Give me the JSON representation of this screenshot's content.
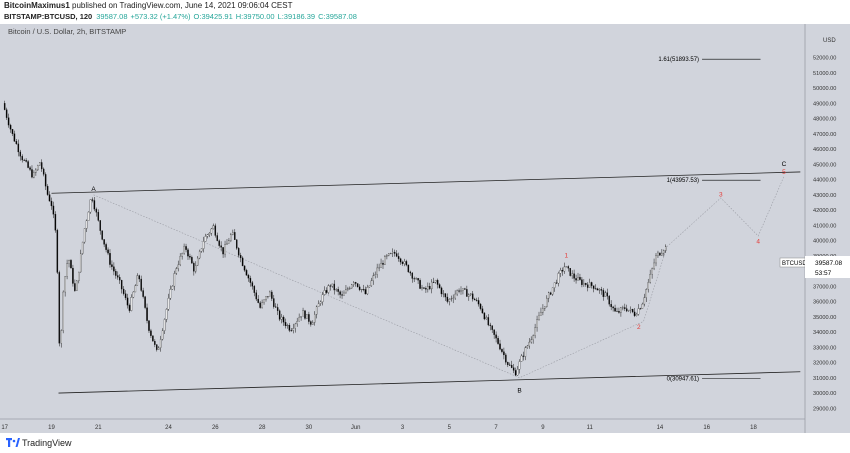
{
  "header": {
    "author": "BitcoinMaximus1",
    "published_text": "published on TradingView.com, June 14, 2021 09:06:04 CEST",
    "ticker": "BITSTAMP:BTCUSD, 120",
    "last": "39587.08",
    "change": "+573.32 (+1.47%)",
    "open": "O:39425.91",
    "high": "H:39750.00",
    "low": "L:39186.39",
    "close": "C:39587.08"
  },
  "chart_title": "Bitcoin / U.S. Dollar, 2h, BITSTAMP",
  "footer_brand": "TradingView",
  "colors": {
    "background": "#d1d4dc",
    "up": "#ffffff",
    "down": "#000000",
    "fib": "#000000",
    "wave_label": "#e53935"
  },
  "chart_data": {
    "type": "candlestick",
    "currency": "USD",
    "price_label": {
      "symbol": "BTCUSD",
      "value": "39587.08",
      "countdown": "53:57"
    },
    "y_ticks": [
      "29000.00",
      "30000.00",
      "31000.00",
      "32000.00",
      "33000.00",
      "34000.00",
      "35000.00",
      "36000.00",
      "37000.00",
      "38000.00",
      "39000.00",
      "40000.00",
      "41000.00",
      "42000.00",
      "43000.00",
      "44000.00",
      "45000.00",
      "46000.00",
      "47000.00",
      "48000.00",
      "49000.00",
      "50000.00",
      "51000.00",
      "52000.00",
      "53000.00"
    ],
    "y_range": [
      28300,
      54200
    ],
    "x_range": [
      16.8,
      51.2
    ],
    "x_ticks": [
      {
        "day": 17,
        "label": "17"
      },
      {
        "day": 19,
        "label": "19"
      },
      {
        "day": 21,
        "label": "21"
      },
      {
        "day": 24,
        "label": "24"
      },
      {
        "day": 26,
        "label": "26"
      },
      {
        "day": 28,
        "label": "28"
      },
      {
        "day": 30,
        "label": "30"
      },
      {
        "day": 32,
        "label": "Jun"
      },
      {
        "day": 34,
        "label": "3"
      },
      {
        "day": 36,
        "label": "5"
      },
      {
        "day": 38,
        "label": "7"
      },
      {
        "day": 40,
        "label": "9"
      },
      {
        "day": 42,
        "label": "11"
      },
      {
        "day": 45,
        "label": "14"
      },
      {
        "day": 47,
        "label": "16"
      },
      {
        "day": 49,
        "label": "18"
      },
      {
        "day": 52,
        "label": "21"
      }
    ],
    "price_path": [
      [
        17.0,
        49000
      ],
      [
        17.4,
        47000
      ],
      [
        17.8,
        45500
      ],
      [
        18.3,
        44200
      ],
      [
        18.6,
        45200
      ],
      [
        18.9,
        43100
      ],
      [
        19.1,
        42300
      ],
      [
        19.3,
        40000
      ],
      [
        19.45,
        31500
      ],
      [
        19.55,
        36500
      ],
      [
        19.8,
        39000
      ],
      [
        20.1,
        36500
      ],
      [
        20.5,
        40800
      ],
      [
        20.8,
        43000
      ],
      [
        21.2,
        40500
      ],
      [
        21.6,
        38500
      ],
      [
        22.0,
        37200
      ],
      [
        22.4,
        35500
      ],
      [
        22.8,
        37800
      ],
      [
        23.2,
        34500
      ],
      [
        23.6,
        32600
      ],
      [
        24.0,
        35500
      ],
      [
        24.4,
        38200
      ],
      [
        24.8,
        39600
      ],
      [
        25.2,
        38000
      ],
      [
        25.6,
        40100
      ],
      [
        26.0,
        40900
      ],
      [
        26.4,
        39200
      ],
      [
        26.8,
        40500
      ],
      [
        27.2,
        38700
      ],
      [
        27.6,
        37200
      ],
      [
        28.0,
        35600
      ],
      [
        28.4,
        36600
      ],
      [
        28.8,
        35000
      ],
      [
        29.3,
        34200
      ],
      [
        29.8,
        35300
      ],
      [
        30.2,
        34600
      ],
      [
        30.6,
        36200
      ],
      [
        31.0,
        37100
      ],
      [
        31.5,
        36300
      ],
      [
        32.0,
        37400
      ],
      [
        32.5,
        36500
      ],
      [
        33.0,
        38100
      ],
      [
        33.4,
        38900
      ],
      [
        33.8,
        39200
      ],
      [
        34.2,
        38400
      ],
      [
        34.6,
        37500
      ],
      [
        35.0,
        36700
      ],
      [
        35.5,
        37300
      ],
      [
        36.0,
        36000
      ],
      [
        36.5,
        36800
      ],
      [
        37.0,
        36400
      ],
      [
        37.4,
        35700
      ],
      [
        37.8,
        34300
      ],
      [
        38.2,
        33200
      ],
      [
        38.6,
        31900
      ],
      [
        38.9,
        31300
      ],
      [
        39.2,
        32400
      ],
      [
        39.6,
        33700
      ],
      [
        40.0,
        35300
      ],
      [
        40.4,
        36600
      ],
      [
        40.8,
        37800
      ],
      [
        41.0,
        38300
      ],
      [
        41.4,
        37600
      ],
      [
        41.8,
        37200
      ],
      [
        42.3,
        37000
      ],
      [
        42.8,
        36300
      ],
      [
        43.2,
        35200
      ],
      [
        43.6,
        35600
      ],
      [
        44.0,
        35200
      ],
      [
        44.3,
        35800
      ],
      [
        44.6,
        37300
      ],
      [
        44.9,
        38900
      ],
      [
        45.3,
        39600
      ]
    ],
    "channel_lines": [
      {
        "from": [
          19.0,
          43100
        ],
        "to": [
          51.0,
          44500
        ]
      },
      {
        "from": [
          19.3,
          30000
        ],
        "to": [
          51.0,
          31400
        ]
      }
    ],
    "wave_path_dotted": [
      [
        20.8,
        43000
      ],
      [
        39.0,
        31000
      ],
      [
        44.3,
        34700
      ],
      [
        45.3,
        39600
      ],
      [
        47.6,
        42800
      ],
      [
        49.2,
        40300
      ],
      [
        50.3,
        44200
      ]
    ],
    "fib_levels": [
      {
        "label": "1.61(51893.57)",
        "value": 51893.57,
        "x1": 46.8,
        "x2": 49.3
      },
      {
        "label": "1(43957.53)",
        "value": 43957.53,
        "x1": 46.8,
        "x2": 49.3
      },
      {
        "label": "0(30947.61)",
        "value": 30947.61,
        "x1": 46.8,
        "x2": 49.3
      }
    ],
    "annotations": [
      {
        "text": "A",
        "x": 20.8,
        "y": 43250,
        "color": "#000000"
      },
      {
        "text": "B",
        "x": 39.0,
        "y": 30050,
        "color": "#000000"
      },
      {
        "text": "C",
        "x": 50.3,
        "y": 44900,
        "color": "#000000"
      },
      {
        "text": "5",
        "x": 50.3,
        "y": 44350,
        "color": "#e53935"
      },
      {
        "text": "1",
        "x": 41.0,
        "y": 38900,
        "color": "#e53935"
      },
      {
        "text": "2",
        "x": 44.1,
        "y": 34200,
        "color": "#e53935"
      },
      {
        "text": "3",
        "x": 47.6,
        "y": 42900,
        "color": "#e53935"
      },
      {
        "text": "4",
        "x": 49.2,
        "y": 39800,
        "color": "#e53935"
      }
    ]
  }
}
